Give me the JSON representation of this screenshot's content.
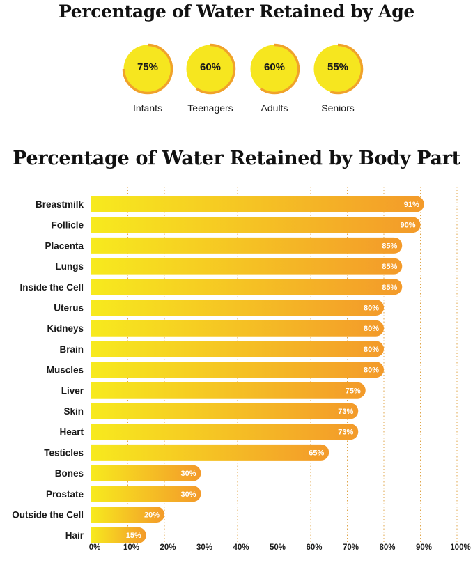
{
  "age_section": {
    "title": "Percentage of Water Retained by Age"
  },
  "body_section": {
    "title": "Percentage of Water Retained by Body Part"
  },
  "colors": {
    "ring_fill": "#f6e61f",
    "ring_arc": "#f0a22b",
    "bar_start": "#f7ea1e",
    "bar_end": "#f39a2a",
    "grid": "#e0a64a"
  },
  "chart_data": [
    {
      "type": "pie",
      "title": "Percentage of Water Retained by Age",
      "categories": [
        "Infants",
        "Teenagers",
        "Adults",
        "Seniors"
      ],
      "values": [
        75,
        60,
        60,
        55
      ],
      "value_labels": [
        "75%",
        "60%",
        "60%",
        "55%"
      ]
    },
    {
      "type": "bar",
      "orientation": "horizontal",
      "title": "Percentage of Water Retained by Body Part",
      "categories": [
        "Breastmilk",
        "Follicle",
        "Placenta",
        "Lungs",
        "Inside the Cell",
        "Uterus",
        "Kidneys",
        "Brain",
        "Muscles",
        "Liver",
        "Skin",
        "Heart",
        "Testicles",
        "Bones",
        "Prostate",
        "Outside the Cell",
        "Hair"
      ],
      "values": [
        91,
        90,
        85,
        85,
        85,
        80,
        80,
        80,
        80,
        75,
        73,
        73,
        65,
        30,
        30,
        20,
        15
      ],
      "value_labels": [
        "91%",
        "90%",
        "85%",
        "85%",
        "85%",
        "80%",
        "80%",
        "80%",
        "80%",
        "75%",
        "73%",
        "73%",
        "65%",
        "30%",
        "30%",
        "20%",
        "15%"
      ],
      "xlim": [
        0,
        100
      ],
      "xticks": [
        "0%",
        "10%",
        "20%",
        "30%",
        "40%",
        "50%",
        "60%",
        "70%",
        "80%",
        "90%",
        "100%"
      ],
      "grid": "vertical-dotted"
    }
  ]
}
